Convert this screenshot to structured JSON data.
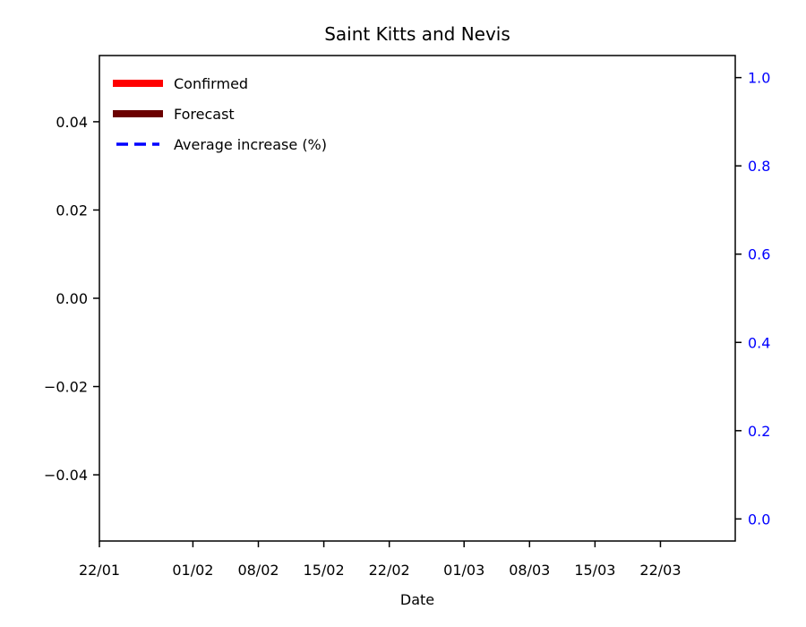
{
  "chart_data": {
    "type": "line",
    "title": "Saint Kitts and Nevis",
    "xlabel": "Date",
    "ylabel": "",
    "ylabel_right": "",
    "x_ticks": [
      "22/01",
      "01/02",
      "08/02",
      "15/02",
      "22/02",
      "01/03",
      "08/03",
      "15/03",
      "22/03"
    ],
    "x_tick_days": [
      0,
      10,
      17,
      24,
      31,
      39,
      46,
      53,
      60
    ],
    "x_range_days": [
      0,
      68
    ],
    "y_left_ticks": [
      "0.04",
      "0.02",
      "0.00",
      "−0.02",
      "−0.04"
    ],
    "y_left_tick_values": [
      0.04,
      0.02,
      0.0,
      -0.02,
      -0.04
    ],
    "ylim_left": [
      -0.055,
      0.055
    ],
    "y_right_ticks": [
      "1.0",
      "0.8",
      "0.6",
      "0.4",
      "0.2",
      "0.0"
    ],
    "y_right_tick_values": [
      1.0,
      0.8,
      0.6,
      0.4,
      0.2,
      0.0
    ],
    "ylim_right": [
      -0.05,
      1.05
    ],
    "grid": false,
    "legend_position": "top-left",
    "series": [
      {
        "name": "Confirmed",
        "values": [],
        "color": "#ff0000",
        "style": "solid"
      },
      {
        "name": "Forecast",
        "values": [],
        "color": "#6b0000",
        "style": "solid"
      },
      {
        "name": "Average increase (%)",
        "values": [],
        "color": "#0000ff",
        "style": "dashed"
      }
    ],
    "right_axis_color": "#0000ff"
  }
}
